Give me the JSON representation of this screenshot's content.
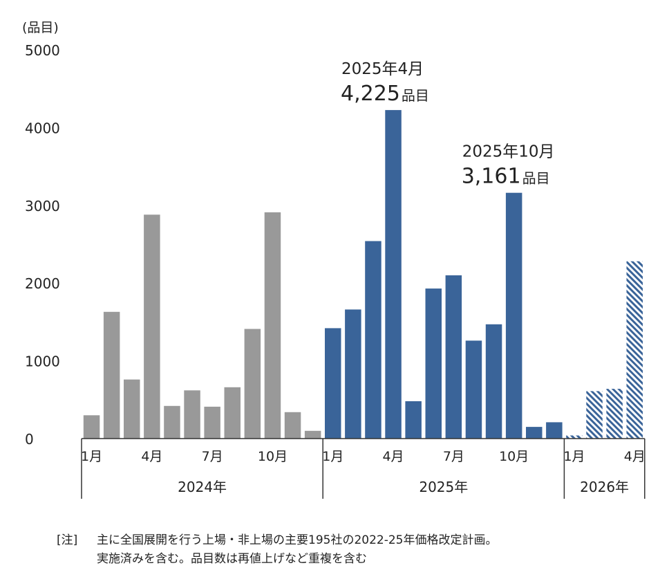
{
  "chart_data": {
    "type": "bar",
    "ylabel": "(品目)",
    "ylim": [
      0,
      5000
    ],
    "yticks": [
      "0",
      "1000",
      "2000",
      "3000",
      "4000",
      "5000"
    ],
    "grid": false,
    "groups": [
      {
        "year": "2024年",
        "color": "#999999",
        "pattern": "solid",
        "tick_labels": [
          "1月",
          "4月",
          "7月",
          "10月"
        ],
        "tick_months": [
          1,
          4,
          7,
          10
        ],
        "months": [
          1,
          2,
          3,
          4,
          5,
          6,
          7,
          8,
          9,
          10,
          11,
          12
        ],
        "values": [
          300,
          1630,
          760,
          2880,
          420,
          620,
          410,
          660,
          1410,
          2910,
          340,
          100
        ]
      },
      {
        "year": "2025年",
        "color": "#3a6499",
        "pattern": "solid",
        "tick_labels": [
          "1月",
          "4月",
          "7月",
          "10月"
        ],
        "tick_months": [
          1,
          4,
          7,
          10
        ],
        "months": [
          1,
          2,
          3,
          4,
          5,
          6,
          7,
          8,
          9,
          10,
          11,
          12
        ],
        "values": [
          1420,
          1660,
          2540,
          4225,
          480,
          1930,
          2100,
          1260,
          1470,
          3161,
          150,
          210
        ]
      },
      {
        "year": "2026年",
        "color": "#3a6499",
        "pattern": "hatched",
        "tick_labels": [
          "1月",
          "4月"
        ],
        "tick_months": [
          1,
          4
        ],
        "months": [
          1,
          2,
          3,
          4
        ],
        "values": [
          40,
          610,
          640,
          2280
        ]
      }
    ],
    "annotations": [
      {
        "title": "2025年4月",
        "value": "4,225",
        "unit": "品目",
        "group": 1,
        "month": 4
      },
      {
        "title": "2025年10月",
        "value": "3,161",
        "unit": "品目",
        "group": 1,
        "month": 10
      }
    ]
  },
  "note": {
    "tag": "[注]",
    "line1": "主に全国展開を行う上場・非上場の主要195社の2022-25年価格改定計画。",
    "line2": "実施済みを含む。品目数は再値上げなど重複を含む"
  }
}
